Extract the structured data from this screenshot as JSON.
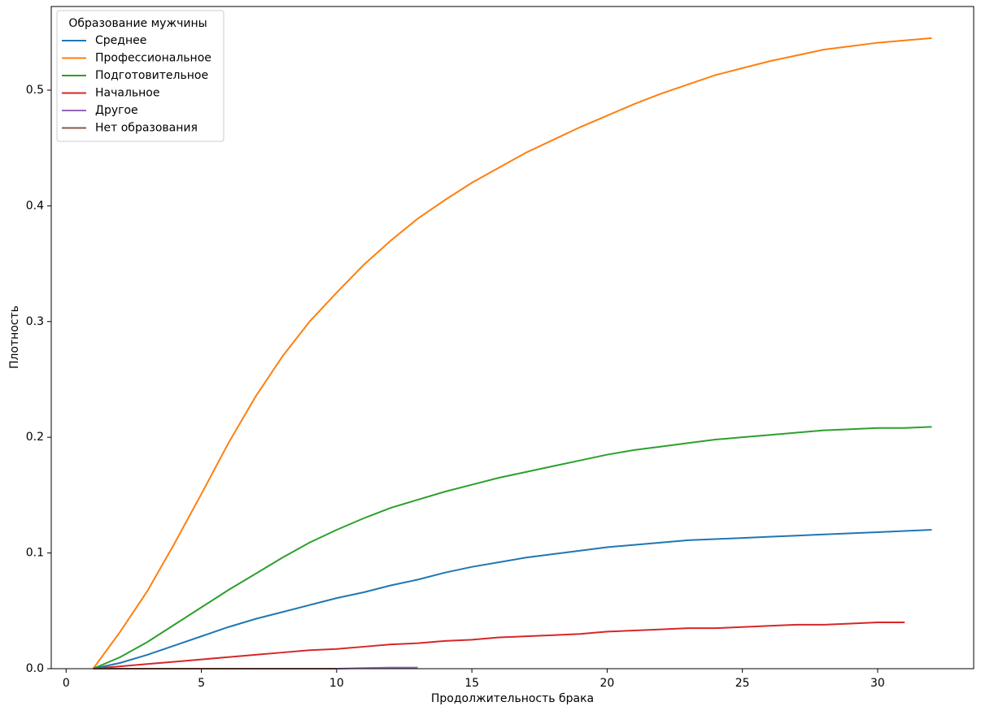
{
  "chart_data": {
    "type": "line",
    "xlabel": "Продолжительность брака",
    "ylabel": "Плотность",
    "legend_title": "Образование мужчины",
    "legend_loc": "upper left",
    "grid": false,
    "x": [
      1,
      2,
      3,
      4,
      5,
      6,
      7,
      8,
      9,
      10,
      11,
      12,
      13,
      14,
      15,
      16,
      17,
      18,
      19,
      20,
      21,
      22,
      23,
      24,
      25,
      26,
      27,
      28,
      29,
      30,
      31,
      32
    ],
    "series": [
      {
        "name": "Среднее",
        "color": "#1f77b4",
        "values": [
          0,
          0.005,
          0.012,
          0.02,
          0.028,
          0.036,
          0.043,
          0.049,
          0.055,
          0.061,
          0.066,
          0.072,
          0.077,
          0.083,
          0.088,
          0.092,
          0.096,
          0.099,
          0.102,
          0.105,
          0.107,
          0.109,
          0.111,
          0.112,
          0.113,
          0.114,
          0.115,
          0.116,
          0.117,
          0.118,
          0.119,
          0.12
        ]
      },
      {
        "name": "Профессиональное",
        "color": "#ff7f0e",
        "values": [
          0,
          0.032,
          0.067,
          0.108,
          0.151,
          0.195,
          0.235,
          0.27,
          0.3,
          0.325,
          0.349,
          0.37,
          0.389,
          0.405,
          0.42,
          0.433,
          0.446,
          0.457,
          0.468,
          0.478,
          0.488,
          0.497,
          0.505,
          0.513,
          0.519,
          0.525,
          0.53,
          0.535,
          0.538,
          0.541,
          0.543,
          0.545
        ]
      },
      {
        "name": "Подготовительное",
        "color": "#2ca02c",
        "values": [
          0,
          0.01,
          0.023,
          0.038,
          0.053,
          0.068,
          0.082,
          0.096,
          0.109,
          0.12,
          0.13,
          0.139,
          0.146,
          0.153,
          0.159,
          0.165,
          0.17,
          0.175,
          0.18,
          0.185,
          0.189,
          0.192,
          0.195,
          0.198,
          0.2,
          0.202,
          0.204,
          0.206,
          0.207,
          0.208,
          0.208,
          0.209
        ]
      },
      {
        "name": "Начальное",
        "color": "#d62728",
        "values": [
          0,
          0.002,
          0.004,
          0.006,
          0.008,
          0.01,
          0.012,
          0.014,
          0.016,
          0.017,
          0.019,
          0.021,
          0.022,
          0.024,
          0.025,
          0.027,
          0.028,
          0.029,
          0.03,
          0.032,
          0.033,
          0.034,
          0.035,
          0.035,
          0.036,
          0.037,
          0.038,
          0.038,
          0.039,
          0.04,
          0.04,
          null
        ]
      },
      {
        "name": "Другое",
        "color": "#9467bd",
        "values": [
          0,
          0,
          0,
          0,
          0,
          0,
          0,
          0,
          0,
          0,
          0.0005,
          0.001,
          0.001,
          null,
          null,
          null,
          null,
          null,
          null,
          null,
          null,
          null,
          null,
          null,
          null,
          null,
          null,
          null,
          null,
          null,
          null,
          null
        ]
      },
      {
        "name": "Нет образования",
        "color": "#8c564b",
        "values": [
          0,
          0,
          0,
          0,
          0,
          0,
          0,
          0,
          0,
          0,
          null,
          null,
          null,
          null,
          null,
          null,
          null,
          null,
          null,
          null,
          null,
          null,
          null,
          null,
          null,
          null,
          null,
          null,
          null,
          null,
          null,
          null
        ]
      }
    ],
    "xlim": [
      -0.55,
      33.55
    ],
    "ylim": [
      0,
      0.5723
    ],
    "xticks": [
      0,
      5,
      10,
      15,
      20,
      25,
      30
    ],
    "yticks": [
      {
        "value": 0,
        "label": "0.0"
      },
      0.1,
      0.2,
      0.3,
      0.4,
      0.5
    ]
  }
}
